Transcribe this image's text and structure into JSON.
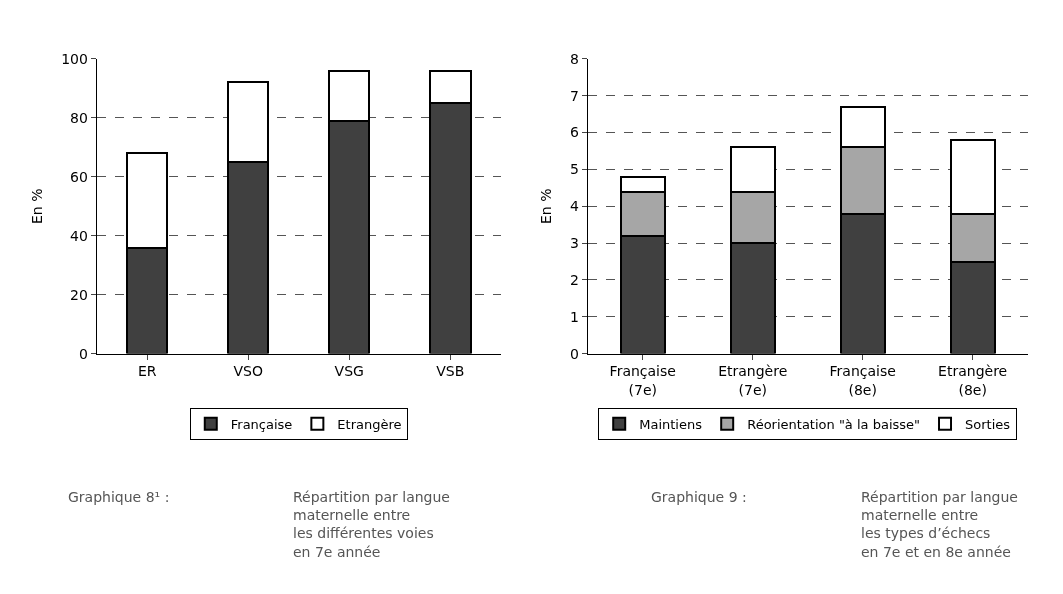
{
  "chart_data": [
    {
      "type": "bar",
      "stacked": true,
      "categories": [
        "ER",
        "VSO",
        "VSG",
        "VSB"
      ],
      "ylabel": "En %",
      "ylim": [
        0,
        100
      ],
      "yticks": [
        0,
        20,
        40,
        60,
        80,
        100
      ],
      "grid": "y",
      "legend": "bottom",
      "series": [
        {
          "name": "Française",
          "color": "#404040",
          "values": [
            36,
            65,
            79,
            85
          ]
        },
        {
          "name": "Etrangère",
          "color": "#ffffff",
          "values": [
            32,
            27,
            17,
            11
          ]
        }
      ],
      "annotations": [
        "Graphique 8¹ :",
        "Répartition par langue\nmaternelle entre\nles différentes voies\nen 7e année"
      ]
    },
    {
      "type": "bar",
      "stacked": true,
      "categories": [
        "Française\n(7e)",
        "Etrangère\n(7e)",
        "Française\n(8e)",
        "Etrangère\n(8e)"
      ],
      "ylabel": "En %",
      "ylim": [
        0,
        8
      ],
      "yticks": [
        0,
        1,
        2,
        3,
        4,
        5,
        6,
        7,
        8
      ],
      "grid": "y",
      "legend": "bottom",
      "series": [
        {
          "name": "Maintiens",
          "color": "#404040",
          "values": [
            3.2,
            3.0,
            3.8,
            2.5
          ]
        },
        {
          "name": "Réorientation \"à la baisse\"",
          "color": "#a6a6a6",
          "values": [
            1.2,
            1.4,
            1.8,
            1.3
          ]
        },
        {
          "name": "Sorties",
          "color": "#ffffff",
          "values": [
            0.4,
            1.2,
            1.1,
            2.0
          ]
        }
      ],
      "annotations": [
        "Graphique 9 :",
        "Répartition par langue\nmaternelle entre\nles types d’échecs\nen 7e et en 8e année"
      ]
    }
  ]
}
